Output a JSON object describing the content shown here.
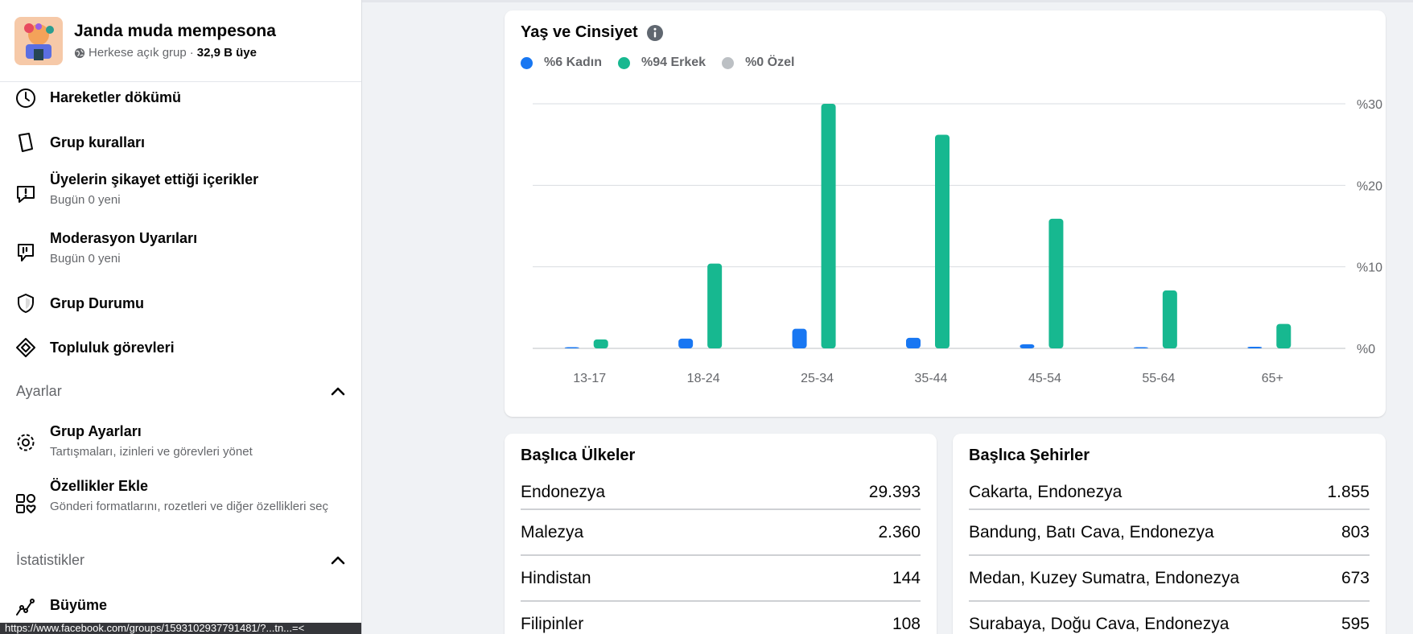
{
  "group": {
    "name": "Janda muda mempesona",
    "privacy": "Herkese açık grup",
    "separator": "·",
    "members": "32,9 B üye"
  },
  "nav": {
    "activity_log": "Hareketler dökümü",
    "group_rules": "Grup kuralları",
    "reported": {
      "label": "Üyelerin şikayet ettiği içerikler",
      "sub": "Bugün 0 yeni"
    },
    "moderation": {
      "label": "Moderasyon Uyarıları",
      "sub": "Bugün 0 yeni"
    },
    "group_status": "Grup Durumu",
    "community_tasks": "Topluluk görevleri",
    "settings_section": "Ayarlar",
    "group_settings": {
      "label": "Grup Ayarları",
      "sub": "Tartışmaları, izinleri ve görevleri yönet"
    },
    "add_features": {
      "label": "Özellikler Ekle",
      "sub": "Gönderi formatlarını, rozetleri ve diğer özellikleri seç"
    },
    "insights_section": "İstatistikler",
    "growth": "Büyüme"
  },
  "status_url": "https://www.facebook.com/groups/1593102937791481/?...tn...=<",
  "chart_card": {
    "title": "Yaş ve Cinsiyet",
    "legend": [
      {
        "label": "%6 Kadın",
        "color": "#1877f2"
      },
      {
        "label": "%94 Erkek",
        "color": "#17b890"
      },
      {
        "label": "%0 Özel",
        "color": "#bcc0c4"
      }
    ]
  },
  "chart_data": {
    "type": "bar",
    "categories": [
      "13-17",
      "18-24",
      "25-34",
      "35-44",
      "45-54",
      "55-64",
      "65+"
    ],
    "series": [
      {
        "name": "Kadın",
        "values": [
          0.1,
          1.2,
          2.4,
          1.3,
          0.5,
          0.1,
          0.2
        ]
      },
      {
        "name": "Erkek",
        "values": [
          1.1,
          10.4,
          30,
          26.2,
          15.9,
          7.1,
          3.0
        ]
      }
    ],
    "y_ticks": [
      "%0",
      "%10",
      "%20",
      "%30"
    ],
    "ylim": [
      0,
      30
    ],
    "grid": true,
    "y_axis_side": "right"
  },
  "countries": {
    "title": "Başlıca Ülkeler",
    "rows": [
      {
        "name": "Endonezya",
        "value": "29.393"
      },
      {
        "name": "Malezya",
        "value": "2.360"
      },
      {
        "name": "Hindistan",
        "value": "144"
      },
      {
        "name": "Filipinler",
        "value": "108"
      }
    ]
  },
  "cities": {
    "title": "Başlıca Şehirler",
    "rows": [
      {
        "name": "Cakarta, Endonezya",
        "value": "1.855"
      },
      {
        "name": "Bandung, Batı Cava, Endonezya",
        "value": "803"
      },
      {
        "name": "Medan, Kuzey Sumatra, Endonezya",
        "value": "673"
      },
      {
        "name": "Surabaya, Doğu Cava, Endonezya",
        "value": "595"
      }
    ]
  }
}
